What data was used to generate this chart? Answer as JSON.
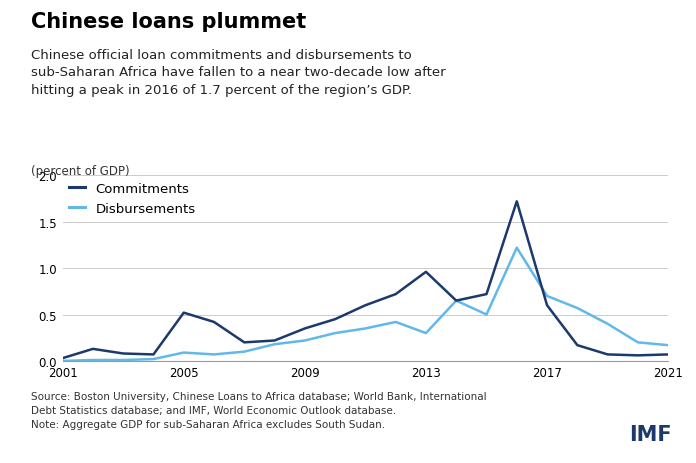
{
  "title": "Chinese loans plummet",
  "subtitle": "Chinese official loan commitments and disbursements to\nsub-Saharan Africa have fallen to a near two-decade low after\nhitting a peak in 2016 of 1.7 percent of the region’s GDP.",
  "ylabel": "(percent of GDP)",
  "source_text": "Source: Boston University, Chinese Loans to Africa database; World Bank, International\nDebt Statistics database; and IMF, World Economic Outlook database.\nNote: Aggregate GDP for sub-Saharan Africa excludes South Sudan.",
  "imf_label": "IMF",
  "years": [
    2001,
    2002,
    2003,
    2004,
    2005,
    2006,
    2007,
    2008,
    2009,
    2010,
    2011,
    2012,
    2013,
    2014,
    2015,
    2016,
    2017,
    2018,
    2019,
    2020,
    2021
  ],
  "commitments": [
    0.03,
    0.13,
    0.08,
    0.07,
    0.52,
    0.42,
    0.2,
    0.22,
    0.35,
    0.45,
    0.6,
    0.72,
    0.96,
    0.65,
    0.72,
    1.72,
    0.6,
    0.17,
    0.07,
    0.06,
    0.07
  ],
  "disbursements": [
    0.0,
    0.01,
    0.01,
    0.02,
    0.09,
    0.07,
    0.1,
    0.18,
    0.22,
    0.3,
    0.35,
    0.42,
    0.3,
    0.65,
    0.5,
    1.22,
    0.7,
    0.57,
    0.4,
    0.2,
    0.17
  ],
  "commit_color": "#1b3a6b",
  "disburs_color": "#62b8e8",
  "ylim": [
    0,
    2.0
  ],
  "yticks": [
    0.0,
    0.5,
    1.0,
    1.5,
    2.0
  ],
  "xtick_labels": [
    "2001",
    "2005",
    "2009",
    "2013",
    "2017",
    "2021"
  ],
  "xtick_positions": [
    2001,
    2005,
    2009,
    2013,
    2017,
    2021
  ],
  "background_color": "#ffffff",
  "grid_color": "#cccccc",
  "title_fontsize": 15,
  "subtitle_fontsize": 9.5,
  "ylabel_fontsize": 8.5,
  "legend_fontsize": 9.5,
  "source_fontsize": 7.5,
  "imf_fontsize": 15
}
